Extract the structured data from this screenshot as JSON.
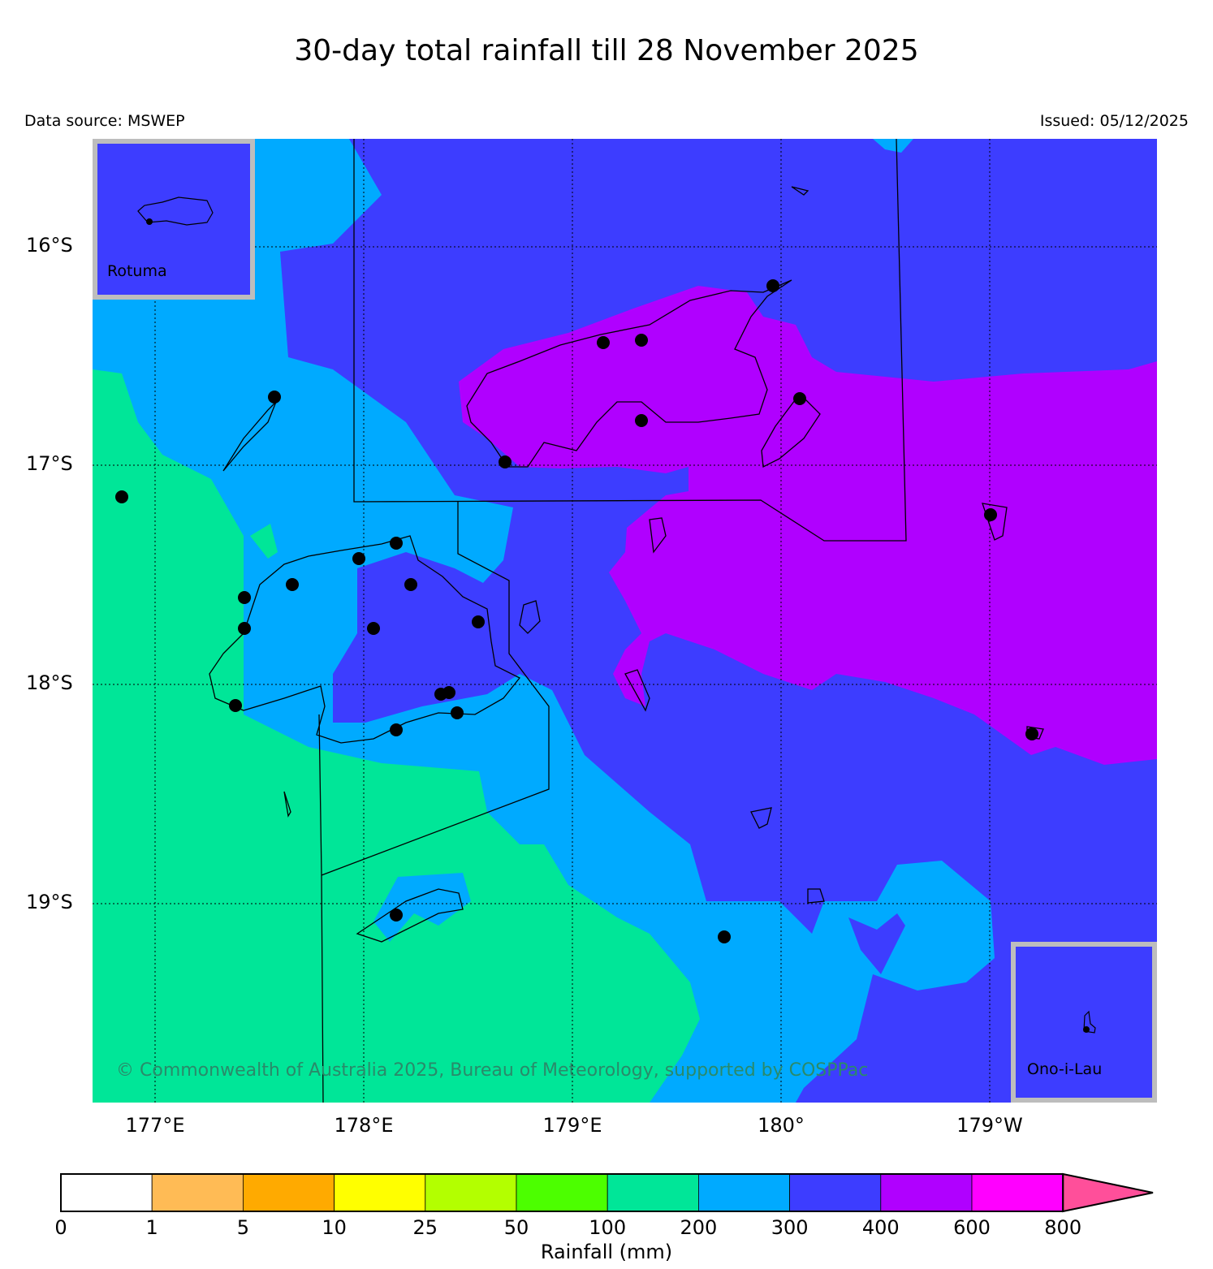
{
  "title": "30-day total rainfall till 28 November 2025",
  "data_source": "Data source: MSWEP",
  "issued": "Issued: 05/12/2025",
  "copyright": "© Commonwealth of Australia 2025, Bureau of Meteorology, supported by COSPPac",
  "lat_labels": [
    "16°S",
    "17°S",
    "18°S",
    "19°S"
  ],
  "lon_labels": [
    "177°E",
    "178°E",
    "179°E",
    "180°",
    "179°W"
  ],
  "insets": {
    "rotuma": "Rotuma",
    "ono": "Ono-i-Lau"
  },
  "colorbar": {
    "label": "Rainfall (mm)",
    "ticks": [
      "0",
      "1",
      "5",
      "10",
      "25",
      "50",
      "100",
      "200",
      "300",
      "400",
      "600",
      "800"
    ],
    "colors": [
      "#ffffff",
      "#ffbb55",
      "#ffaa00",
      "#ffff00",
      "#b3ff00",
      "#4cff00",
      "#00e698",
      "#00aaff",
      "#3d3dff",
      "#b000ff",
      "#ff00ff"
    ],
    "extend_color": "#ff4f9a"
  }
}
